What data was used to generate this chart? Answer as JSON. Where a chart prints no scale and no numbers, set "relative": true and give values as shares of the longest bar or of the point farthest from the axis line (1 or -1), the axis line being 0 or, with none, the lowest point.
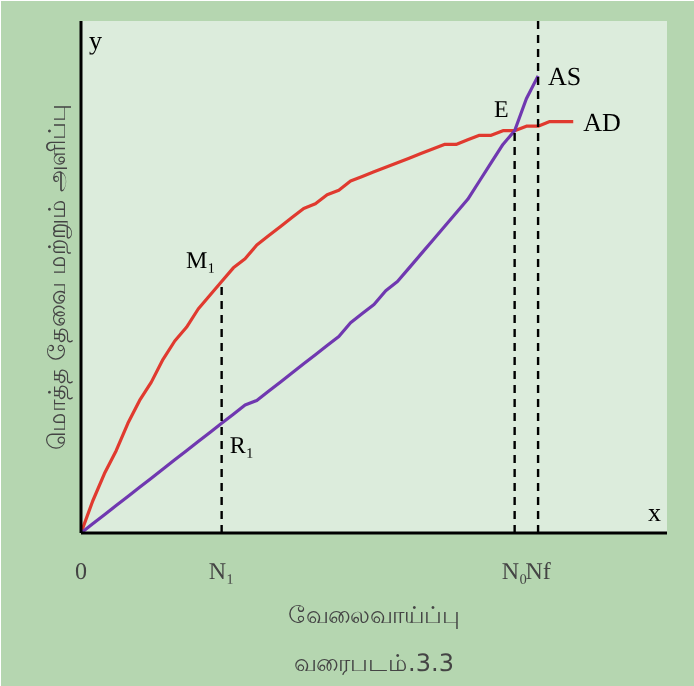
{
  "chart_data": {
    "type": "line",
    "relative": true,
    "xlabel": "வேலைவாய்ப்பு",
    "ylabel": "மொத்த தேவை மற்றும் அளிப்பு",
    "categories": [
      "0",
      null,
      null,
      null,
      null,
      null,
      null,
      null,
      null,
      null,
      null,
      null,
      "N₁",
      null,
      null,
      null,
      null,
      null,
      null,
      null,
      null,
      null,
      null,
      null,
      null,
      null,
      null,
      null,
      null,
      null,
      null,
      null,
      null,
      null,
      null,
      null,
      null,
      "N₀",
      null,
      "Nf",
      null,
      null,
      null,
      null,
      null,
      null,
      null,
      null,
      null,
      null,
      null
    ],
    "series": [
      {
        "name": "AD",
        "color": "#e03a2f",
        "values": [
          0,
          0.07,
          0.13,
          0.18,
          0.24,
          0.29,
          0.33,
          0.38,
          0.42,
          0.45,
          0.49,
          0.52,
          0.55,
          0.58,
          0.6,
          0.63,
          0.65,
          0.67,
          0.69,
          0.71,
          0.72,
          0.74,
          0.75,
          0.77,
          0.78,
          0.79,
          0.8,
          0.81,
          0.82,
          0.83,
          0.84,
          0.85,
          0.85,
          0.86,
          0.87,
          0.87,
          0.88,
          0.88,
          0.89,
          0.89,
          0.9,
          0.9,
          0.9,
          null,
          null,
          null,
          null,
          null,
          null,
          null,
          null
        ]
      },
      {
        "name": "AS",
        "color": "#7038b0",
        "values": [
          0,
          0.02,
          0.04,
          0.06,
          0.08,
          0.1,
          0.12,
          0.14,
          0.16,
          0.18,
          0.2,
          0.22,
          0.24,
          0.26,
          0.28,
          0.29,
          0.31,
          0.33,
          0.35,
          0.37,
          0.39,
          0.41,
          0.43,
          0.46,
          0.48,
          0.5,
          0.53,
          0.55,
          0.58,
          0.61,
          0.64,
          0.67,
          0.7,
          0.73,
          0.77,
          0.81,
          0.85,
          0.88,
          0.95,
          1.0,
          null,
          null,
          null,
          null,
          null,
          null,
          null,
          null,
          null,
          null,
          null
        ]
      }
    ],
    "ref_lines": [
      {
        "axis": "x",
        "value": "N₁",
        "line_style": "dashed",
        "color": "#000000"
      },
      {
        "axis": "x",
        "value": "N₀",
        "line_style": "dashed",
        "color": "#000000"
      },
      {
        "axis": "x",
        "value": "Nf",
        "line_style": "dashed",
        "color": "#000000"
      }
    ],
    "annotations": [
      {
        "text": "M₁",
        "x": "N₁",
        "y": 0.55
      },
      {
        "text": "R₁",
        "x": "N₁",
        "y": 0.24
      },
      {
        "text": "E",
        "x": "N₀",
        "y": 0.88
      },
      "y",
      "x",
      "வரைபடம்.3.3"
    ],
    "legend": false
  }
}
